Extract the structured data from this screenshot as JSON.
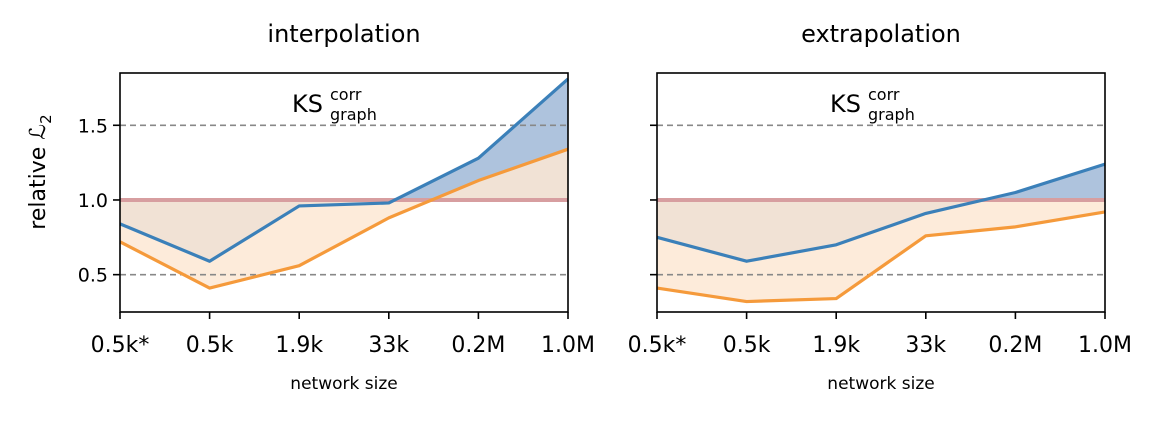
{
  "figure": {
    "ylabel": "relative ℒ",
    "ylabel_sub": "2"
  },
  "chart_data": [
    {
      "type": "line",
      "title": "interpolation",
      "annotation": {
        "main": "KS",
        "sup": "corr",
        "sub": "graph"
      },
      "xlabel": "network size",
      "ylabel": "relative ℒ2",
      "categories": [
        "0.5k*",
        "0.5k",
        "1.9k",
        "33k",
        "0.2M",
        "1.0M"
      ],
      "ylim": [
        0.25,
        1.85
      ],
      "yticks": [
        0.5,
        1.0,
        1.5
      ],
      "ytick_labels": [
        "0.5",
        "1.0",
        "1.5"
      ],
      "reference_line": 1.0,
      "dashed_lines": [
        0.5,
        1.5
      ],
      "series": [
        {
          "color": "#3b80b9",
          "fill": "#aec3dd",
          "values": [
            0.84,
            0.59,
            0.96,
            0.98,
            1.28,
            1.81
          ]
        },
        {
          "color": "#f59a3b",
          "fill": "#fde7d3",
          "values": [
            0.72,
            0.41,
            0.56,
            0.88,
            1.13,
            1.34
          ]
        }
      ]
    },
    {
      "type": "line",
      "title": "extrapolation",
      "annotation": {
        "main": "KS",
        "sup": "corr",
        "sub": "graph"
      },
      "xlabel": "network size",
      "ylabel": "",
      "categories": [
        "0.5k*",
        "0.5k",
        "1.9k",
        "33k",
        "0.2M",
        "1.0M"
      ],
      "ylim": [
        0.25,
        1.85
      ],
      "yticks": [
        0.5,
        1.0,
        1.5
      ],
      "ytick_labels": [],
      "reference_line": 1.0,
      "dashed_lines": [
        0.5,
        1.5
      ],
      "series": [
        {
          "color": "#3b80b9",
          "fill": "#aec3dd",
          "values": [
            0.75,
            0.59,
            0.7,
            0.91,
            1.05,
            1.24
          ]
        },
        {
          "color": "#f59a3b",
          "fill": "#fde7d3",
          "values": [
            0.41,
            0.32,
            0.34,
            0.76,
            0.82,
            0.92
          ]
        }
      ]
    }
  ]
}
